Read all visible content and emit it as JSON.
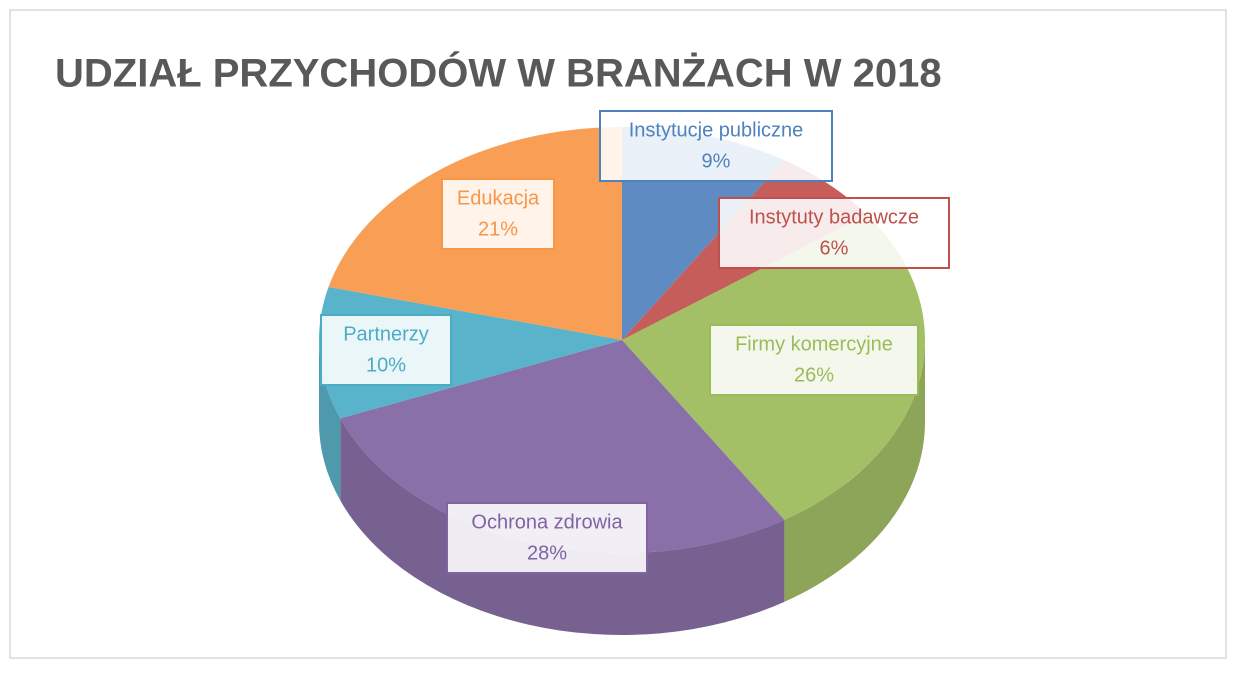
{
  "chart_data": {
    "type": "pie",
    "title": "UDZIAŁ PRZYCHODÓW W BRANŻACH W 2018",
    "categories": [
      "Instytucje publiczne",
      "Instytuty badawcze",
      "Firmy komercyjne",
      "Ochrona zdrowia",
      "Partnerzy",
      "Edukacja"
    ],
    "values": [
      9,
      6,
      26,
      28,
      10,
      21
    ],
    "value_labels": [
      "9%",
      "6%",
      "26%",
      "28%",
      "10%",
      "21%"
    ],
    "colors": [
      "#4f81bd",
      "#c0504d",
      "#9bbb59",
      "#8064a2",
      "#4bacc6",
      "#f79646"
    ]
  }
}
